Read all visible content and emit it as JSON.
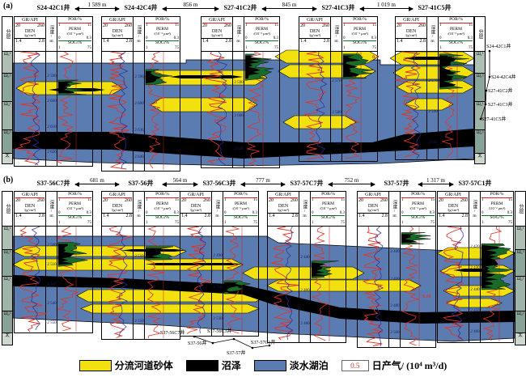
{
  "figure": {
    "log_header": {
      "strat_col": "分层",
      "gr_title": "GR/API",
      "gr_min": "20",
      "gr_max": "260",
      "den_title": "DEN",
      "den_unit": "/(g/cm³)",
      "den_min": "1.4",
      "den_max": "2.8",
      "depth_title": "深度/m",
      "por_title": "POR/%",
      "por_min": "1",
      "por_max": "15",
      "perm_title": "PERM",
      "perm_unit": "/(10⁻³ μm²)",
      "perm_min": "0",
      "perm_max": "0.3",
      "sog_title": "SOG/%",
      "sog_min": "1",
      "sog_max": "75"
    },
    "panel_a": {
      "label": "(a)",
      "wells": [
        "S24-42C1井",
        "S24-42C4井",
        "S27-41C2井",
        "S27-41C3井",
        "S27-41C5井"
      ],
      "distances": [
        "1 589 m",
        "856 m",
        "845 m",
        "1 019 m"
      ],
      "strat_labels": [
        "山₁¹",
        "山₁²",
        "山₂¹",
        "山₂²",
        "太"
      ],
      "depth_labels": [
        [
          "2 590",
          "2 600",
          "2 610",
          "2 620"
        ],
        [
          "2 590",
          "2 600",
          "2 630",
          "2 640"
        ],
        [
          "2 590",
          "2 600",
          "2 620"
        ],
        [
          "2 570",
          "2 580",
          "2 600"
        ],
        [
          "2 570",
          "2 590",
          "2 610"
        ]
      ],
      "production": [
        "0.5"
      ],
      "inset_wells": [
        "S24-42C1井",
        "S24-42C4井",
        "S27-41C2井",
        "S27-41C3井",
        "S27-41C5井"
      ]
    },
    "panel_b": {
      "label": "(b)",
      "wells": [
        "S37-56C7井",
        "S37-56井",
        "S37-56C3井",
        "S37-57C7井",
        "S37-57井",
        "S37-57C1井"
      ],
      "distances": [
        "681 m",
        "564 m",
        "777 m",
        "752 m",
        "1 317 m"
      ],
      "strat_labels": [
        "山₁¹",
        "山₁²",
        "山₂¹",
        "山₂²",
        "太"
      ],
      "depth_labels": [
        [
          "2 500",
          "2 510",
          "2 520",
          "2 540",
          "2 550"
        ],
        [
          "2 510",
          "2 530",
          "2 550"
        ],
        [
          "2 490",
          "2 510",
          "2 530"
        ],
        [
          "2 440",
          "2 460",
          "2 480"
        ],
        [
          "2 440",
          "2 460",
          "2 480",
          "2 500"
        ],
        [
          "2 420",
          "2 430",
          "2 440",
          "2 450",
          "2 460"
        ]
      ],
      "production": [
        "0.16"
      ],
      "inset_wells": [
        "S37-56C7井",
        "S37-56井",
        "S37-56C3井",
        "S37-57井",
        "S37-57C1井"
      ]
    },
    "legend": {
      "items": [
        {
          "label": "分流河道砂体",
          "color": "#f2e10e"
        },
        {
          "label": "沼泽",
          "color": "#000000"
        },
        {
          "label": "淡水湖泊",
          "color": "#5b7cb1"
        },
        {
          "label": "日产气/ (10⁴ m³/d)",
          "value": "0.5",
          "color": "#ffffff"
        }
      ]
    },
    "colors": {
      "sand": "#f2e10e",
      "swamp": "#000000",
      "lake": "#5b7cb1",
      "gr_curve": "#e0352a",
      "den_curve": "#2d2d96",
      "sog_fill": "#1a6b2a",
      "production": "#d23b2f"
    }
  }
}
